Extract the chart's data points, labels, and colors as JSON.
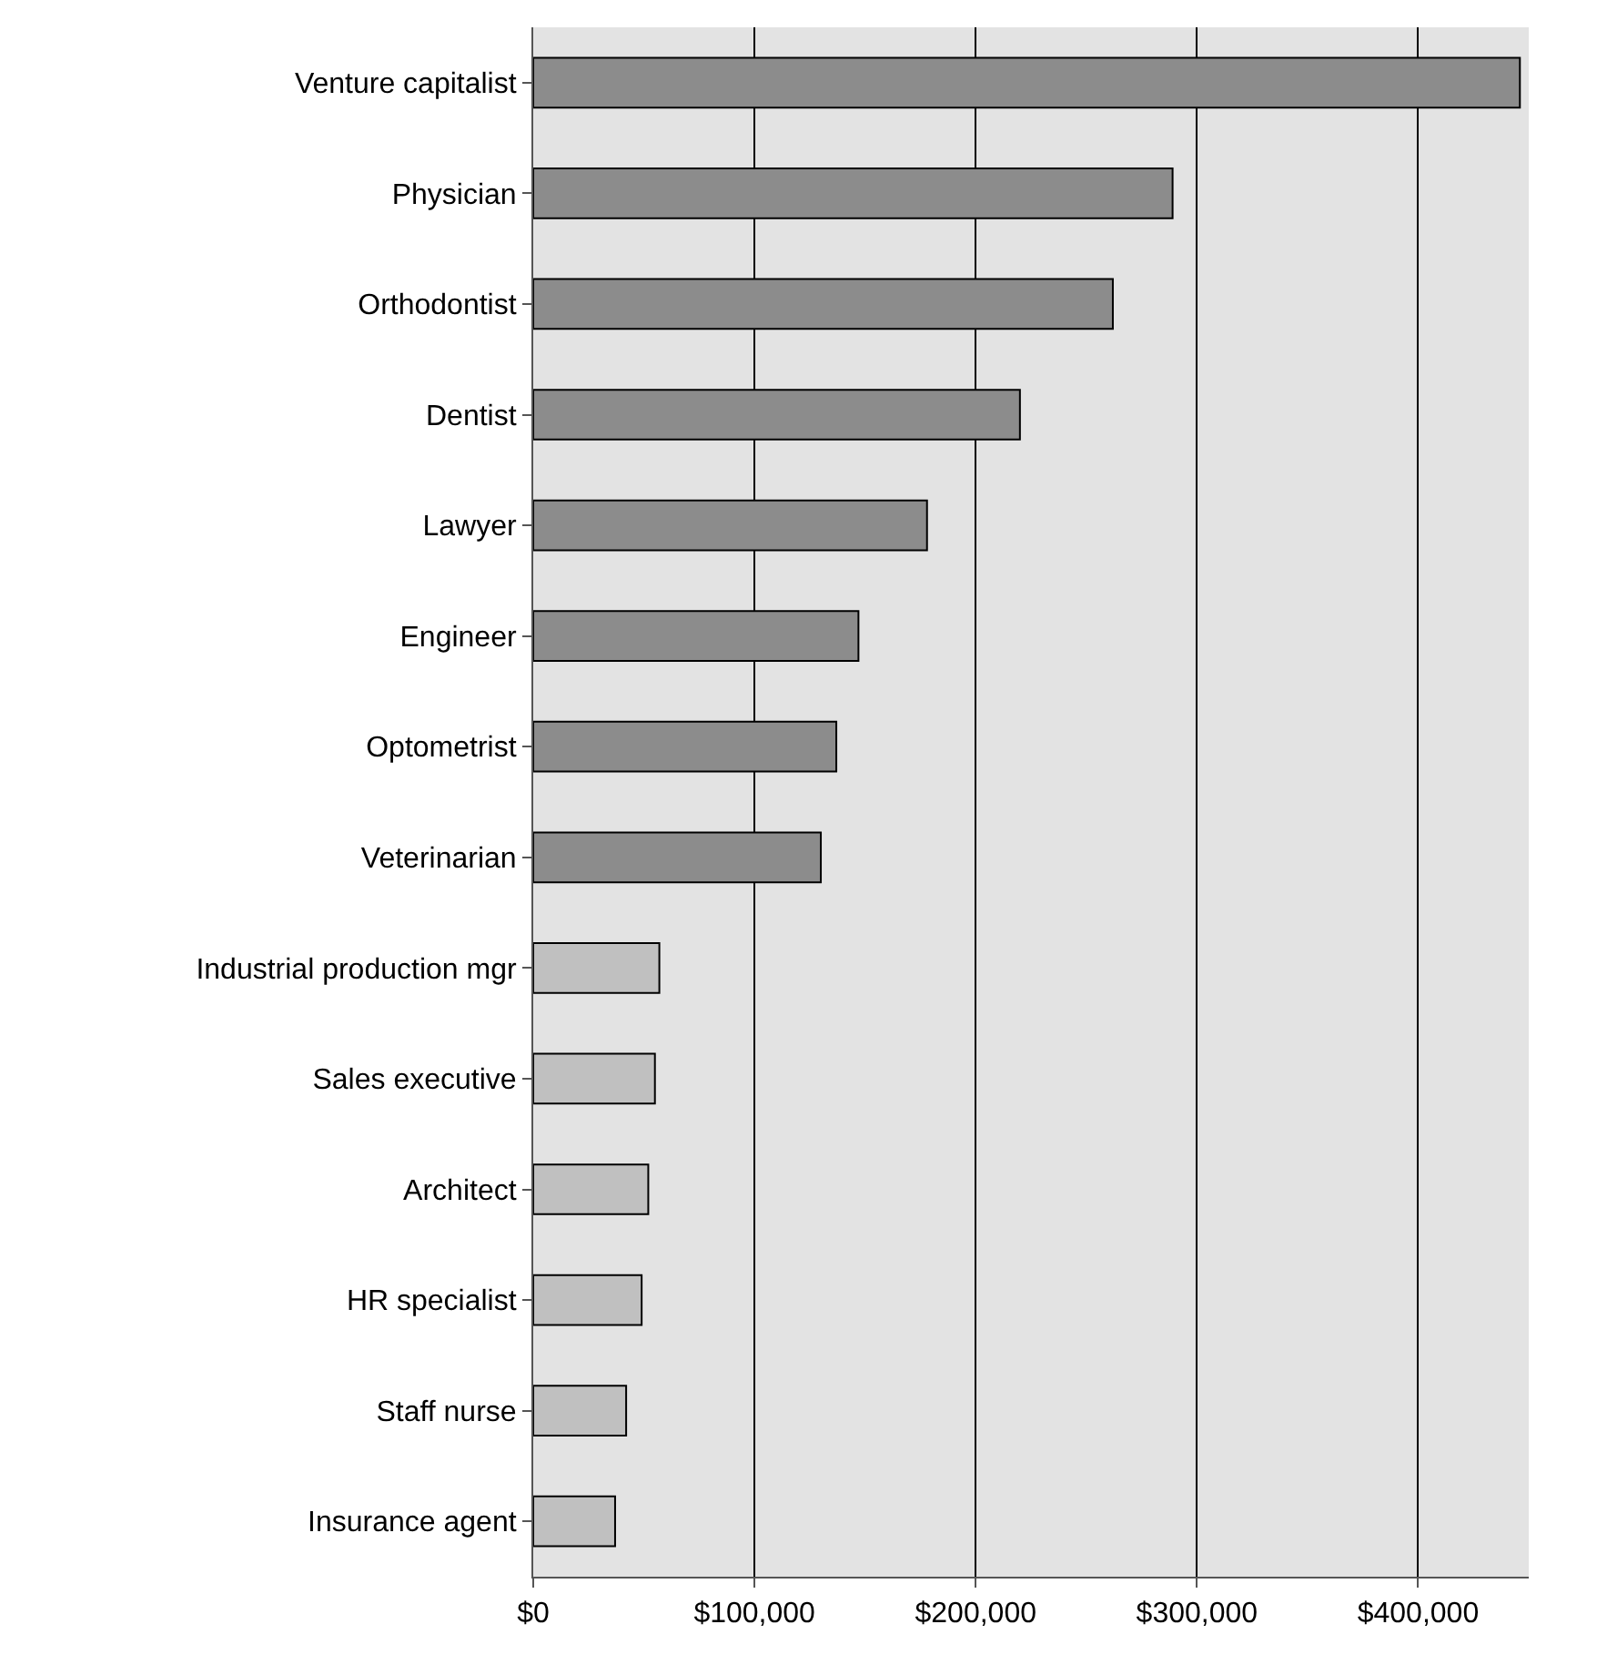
{
  "chart_data": {
    "type": "bar",
    "orientation": "horizontal",
    "categories": [
      "Venture capitalist",
      "Physician",
      "Orthodontist",
      "Dentist",
      "Lawyer",
      "Engineer",
      "Optometrist",
      "Veterinarian",
      "Industrial production mgr",
      "Sales executive",
      "Architect",
      "HR specialist",
      "Staff nurse",
      "Insurance agent"
    ],
    "values": [
      446000,
      289000,
      262000,
      220000,
      178000,
      147000,
      137000,
      130000,
      57000,
      55000,
      52000,
      49000,
      42000,
      37000
    ],
    "colors": [
      "#8c8c8c",
      "#8c8c8c",
      "#8c8c8c",
      "#8c8c8c",
      "#8c8c8c",
      "#8c8c8c",
      "#8c8c8c",
      "#8c8c8c",
      "#c0c0c0",
      "#c0c0c0",
      "#c0c0c0",
      "#c0c0c0",
      "#c0c0c0",
      "#c0c0c0"
    ],
    "xlim": [
      0,
      450000
    ],
    "xticks": [
      {
        "value": 0,
        "label": "$0"
      },
      {
        "value": 100000,
        "label": "$100,000"
      },
      {
        "value": 200000,
        "label": "$200,000"
      },
      {
        "value": 300000,
        "label": "$300,000"
      },
      {
        "value": 400000,
        "label": "$400,000"
      }
    ],
    "grid": "x"
  }
}
